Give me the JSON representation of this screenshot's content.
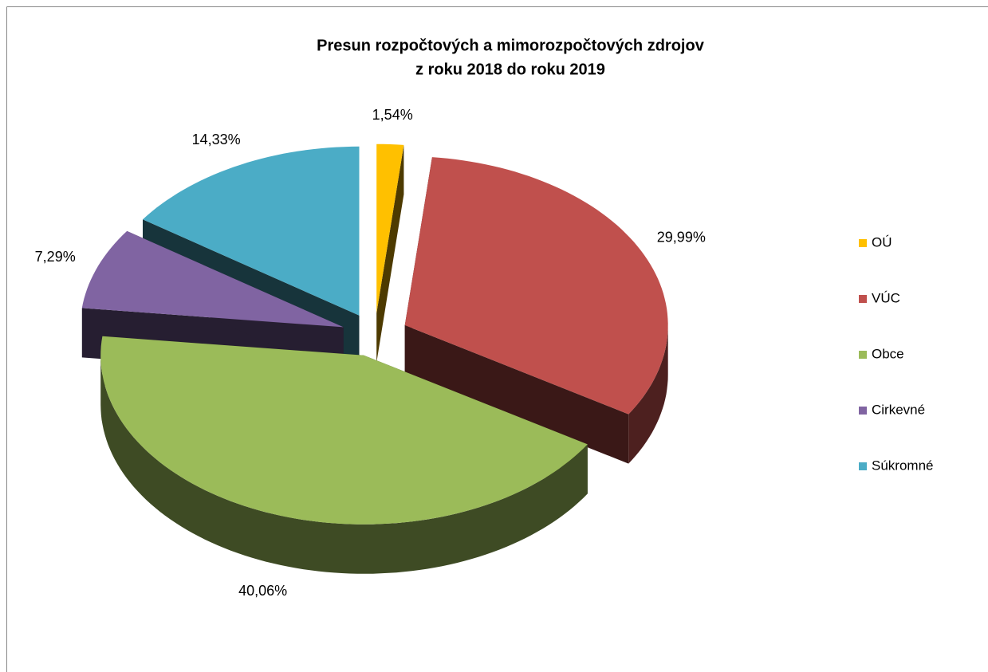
{
  "chart_data": {
    "type": "pie3d",
    "title": [
      "Presun rozpočtových a mimorozpočtových zdrojov",
      "z roku 2018 do roku 2019"
    ],
    "categories": [
      "OÚ",
      "VÚC",
      "Obce",
      "Cirkevné",
      "Súkromné"
    ],
    "values": [
      1.54,
      29.99,
      40.06,
      7.29,
      14.33
    ],
    "value_labels": [
      "1,54%",
      "29,99%",
      "40,06%",
      "7,29%",
      "14,33%"
    ],
    "colors": [
      "#ffc000",
      "#c0504d",
      "#9bbb59",
      "#8064a2",
      "#4bacc6"
    ],
    "legend": "right"
  }
}
